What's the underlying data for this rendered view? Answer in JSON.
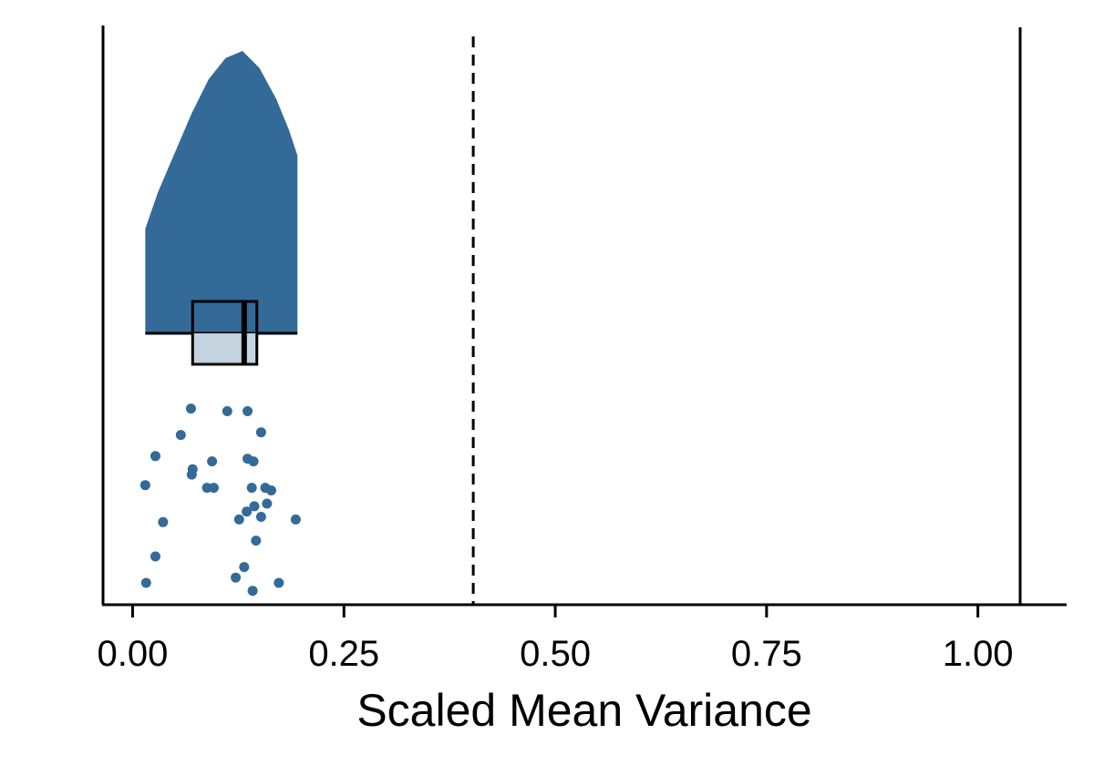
{
  "chart_data": {
    "type": "raincloud",
    "xlabel": "Scaled Mean Variance",
    "xlim": [
      -0.035,
      1.105
    ],
    "xticks": [
      0.0,
      0.25,
      0.5,
      0.75,
      1.0
    ],
    "xtick_labels": [
      "0.00",
      "0.25",
      "0.50",
      "0.75",
      "1.00"
    ],
    "grid": false,
    "reference_lines": [
      {
        "x": 0.403,
        "style": "dashed"
      },
      {
        "x": 1.05,
        "style": "solid"
      }
    ],
    "series": [
      {
        "color": "#336a98",
        "density": {
          "x_range": [
            0.015,
            0.195
          ],
          "curve": [
            [
              0.015,
              0.37
            ],
            [
              0.03,
              0.5
            ],
            [
              0.05,
              0.64
            ],
            [
              0.07,
              0.78
            ],
            [
              0.09,
              0.9
            ],
            [
              0.11,
              0.975
            ],
            [
              0.13,
              1.0
            ],
            [
              0.15,
              0.94
            ],
            [
              0.17,
              0.83
            ],
            [
              0.185,
              0.72
            ],
            [
              0.195,
              0.63
            ]
          ]
        },
        "boxplot": {
          "q1": 0.071,
          "median": 0.132,
          "q3": 0.147
        },
        "points": [
          [
            0.069,
            0.96
          ],
          [
            0.112,
            0.95
          ],
          [
            0.136,
            0.95
          ],
          [
            0.057,
            0.86
          ],
          [
            0.152,
            0.87
          ],
          [
            0.027,
            0.78
          ],
          [
            0.136,
            0.77
          ],
          [
            0.143,
            0.76
          ],
          [
            0.094,
            0.76
          ],
          [
            0.071,
            0.73
          ],
          [
            0.07,
            0.71
          ],
          [
            0.015,
            0.67
          ],
          [
            0.088,
            0.66
          ],
          [
            0.096,
            0.66
          ],
          [
            0.141,
            0.66
          ],
          [
            0.157,
            0.66
          ],
          [
            0.164,
            0.65
          ],
          [
            0.159,
            0.6
          ],
          [
            0.144,
            0.59
          ],
          [
            0.135,
            0.57
          ],
          [
            0.152,
            0.55
          ],
          [
            0.126,
            0.54
          ],
          [
            0.193,
            0.54
          ],
          [
            0.036,
            0.53
          ],
          [
            0.146,
            0.46
          ],
          [
            0.027,
            0.4
          ],
          [
            0.132,
            0.36
          ],
          [
            0.122,
            0.32
          ],
          [
            0.016,
            0.3
          ],
          [
            0.173,
            0.3
          ],
          [
            0.142,
            0.27
          ]
        ]
      }
    ]
  }
}
